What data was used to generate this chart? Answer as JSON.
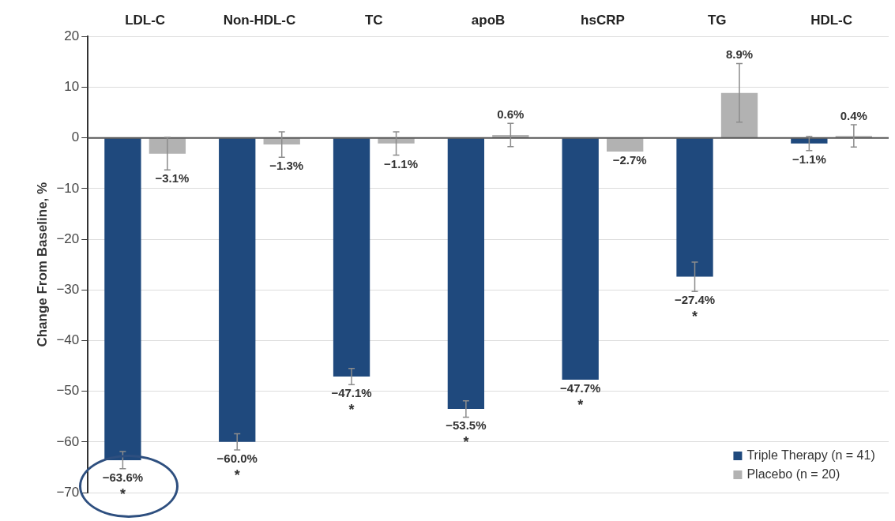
{
  "chart_data": {
    "type": "bar",
    "ylabel": "Change From Baseline, %",
    "categories": [
      "LDL-C",
      "Non-HDL-C",
      "TC",
      "apoB",
      "hsCRP",
      "TG",
      "HDL-C"
    ],
    "series": [
      {
        "name": "Triple Therapy (n = 41)",
        "color": "#1f497d",
        "values": [
          -63.6,
          -60.0,
          -47.1,
          -53.5,
          -47.7,
          -27.4,
          -1.1
        ],
        "errors": [
          1.7,
          1.6,
          1.6,
          1.6,
          null,
          2.9,
          1.4
        ],
        "value_labels": [
          "−63.6%",
          "−60.0%",
          "−47.1%",
          "−53.5%",
          "−47.7%",
          "−27.4%",
          "−1.1%"
        ]
      },
      {
        "name": "Placebo (n = 20)",
        "color": "#b2b2b2",
        "values": [
          -3.1,
          -1.3,
          -1.1,
          0.6,
          -2.7,
          8.9,
          0.4
        ],
        "errors": [
          3.2,
          2.5,
          2.3,
          2.3,
          null,
          5.8,
          2.2
        ],
        "value_labels": [
          "−3.1%",
          "−1.3%",
          "−1.1%",
          "0.6%",
          "−2.7%",
          "8.9%",
          "0.4%"
        ]
      }
    ],
    "ylim": [
      -70,
      20
    ],
    "yticks": [
      {
        "value": -70,
        "label": "−70"
      },
      {
        "value": -60,
        "label": "−60"
      },
      {
        "value": -50,
        "label": "−50"
      },
      {
        "value": -40,
        "label": "−40"
      },
      {
        "value": -30,
        "label": "−30"
      },
      {
        "value": -20,
        "label": "−20"
      },
      {
        "value": -10,
        "label": "−10"
      },
      0,
      10,
      20
    ],
    "grid": "y",
    "legend": "bottom right",
    "annotations": [
      "*",
      "*",
      "*",
      "*",
      "*",
      "*"
    ]
  }
}
